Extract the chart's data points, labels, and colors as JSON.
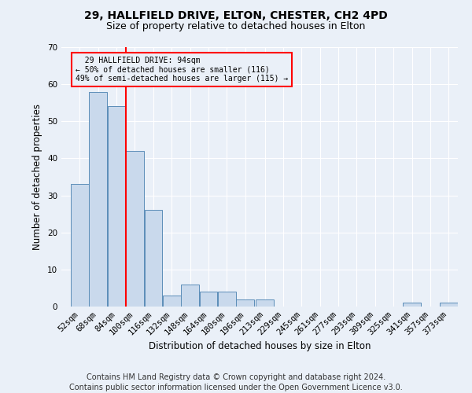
{
  "title1": "29, HALLFIELD DRIVE, ELTON, CHESTER, CH2 4PD",
  "title2": "Size of property relative to detached houses in Elton",
  "xlabel": "Distribution of detached houses by size in Elton",
  "ylabel": "Number of detached properties",
  "footer1": "Contains HM Land Registry data © Crown copyright and database right 2024.",
  "footer2": "Contains public sector information licensed under the Open Government Licence v3.0.",
  "annotation_line1": "  29 HALLFIELD DRIVE: 94sqm  ",
  "annotation_line2": "← 50% of detached houses are smaller (116)",
  "annotation_line3": "49% of semi-detached houses are larger (115) →",
  "bar_color": "#c9d9ec",
  "bar_edge_color": "#5b8db8",
  "redline_x": 100,
  "categories": [
    52,
    68,
    84,
    100,
    116,
    132,
    148,
    164,
    180,
    196,
    213,
    229,
    245,
    261,
    277,
    293,
    309,
    325,
    341,
    357,
    373
  ],
  "values": [
    33,
    58,
    54,
    42,
    26,
    3,
    6,
    4,
    4,
    2,
    2,
    0,
    0,
    0,
    0,
    0,
    0,
    0,
    1,
    0,
    1
  ],
  "ylim": [
    0,
    70
  ],
  "xlim": [
    44,
    389
  ],
  "bin_width": 16,
  "background_color": "#eaf0f8",
  "grid_color": "#ffffff",
  "title_fontsize": 10,
  "subtitle_fontsize": 9,
  "axis_fontsize": 8.5,
  "tick_fontsize": 7.5,
  "footer_fontsize": 7
}
